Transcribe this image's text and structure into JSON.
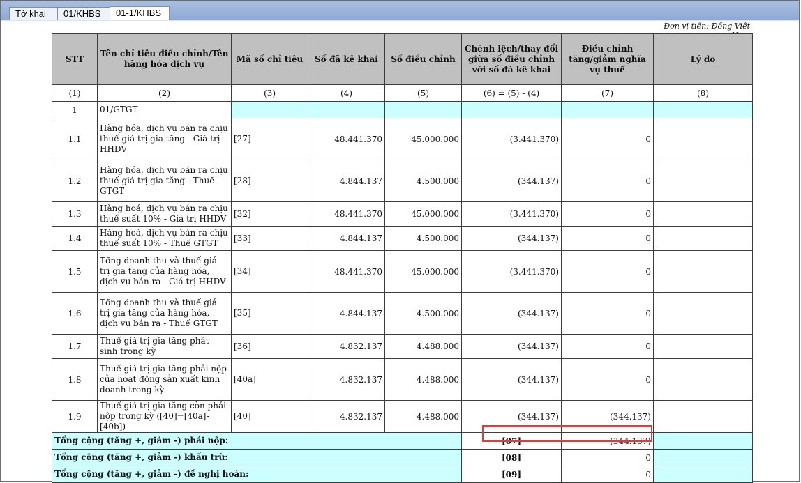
{
  "tabs": [
    {
      "label": "Tờ khai"
    },
    {
      "label": "01/KHBS"
    },
    {
      "label": "01-1/KHBS"
    }
  ],
  "unit_label": "Đơn vị tiền: Đồng Việt Nam",
  "headers": {
    "stt": "STT",
    "name": "Tên chỉ tiêu điều chỉnh/Tên hàng hóa dịch vụ",
    "code": "Mã số chỉ tiêu",
    "declared": "Số đã kê khai",
    "adjusted": "Số điều chỉnh",
    "diff": "Chênh lệch/thay đổi giữa số điều chỉnh với số đã kê khai",
    "tax_adj": "Điều chỉnh tăng/giảm nghĩa vụ thuế",
    "reason": "Lý do"
  },
  "column_numbers": [
    "(1)",
    "(2)",
    "(3)",
    "(4)",
    "(5)",
    "(6) = (5) - (4)",
    "(7)",
    "(8)"
  ],
  "section": {
    "stt": "1",
    "name": "01/GTGT"
  },
  "rows": [
    {
      "stt": "1.1",
      "name": "Hàng hóa, dịch vụ bán ra chịu thuế giá trị gia tăng - Giá trị HHDV",
      "code": "[27]",
      "declared": "48.441.370",
      "adjusted": "45.000.000",
      "diff": "(3.441.370)",
      "tax_adj": "0"
    },
    {
      "stt": "1.2",
      "name": "Hàng hóa, dịch vụ bán ra chịu thuế giá trị gia tăng - Thuế GTGT",
      "code": "[28]",
      "declared": "4.844.137",
      "adjusted": "4.500.000",
      "diff": "(344.137)",
      "tax_adj": "0"
    },
    {
      "stt": "1.3",
      "name": "Hàng hoá, dịch vụ bán ra chịu thuế suất 10% - Giá trị HHDV",
      "code": "[32]",
      "declared": "48.441.370",
      "adjusted": "45.000.000",
      "diff": "(3.441.370)",
      "tax_adj": "0"
    },
    {
      "stt": "1.4",
      "name": "Hàng hoá, dịch vụ bán ra chịu thuế suất 10% - Thuế GTGT",
      "code": "[33]",
      "declared": "4.844.137",
      "adjusted": "4.500.000",
      "diff": "(344.137)",
      "tax_adj": "0"
    },
    {
      "stt": "1.5",
      "name": "Tổng doanh thu và thuế giá trị gia tăng của hàng hóa, dịch vụ bán ra - Giá trị HHDV",
      "code": "[34]",
      "declared": "48.441.370",
      "adjusted": "45.000.000",
      "diff": "(3.441.370)",
      "tax_adj": "0"
    },
    {
      "stt": "1.6",
      "name": "Tổng doanh thu và thuế giá trị gia tăng của hàng hóa, dịch vụ bán ra - Thuế GTGT",
      "code": "[35]",
      "declared": "4.844.137",
      "adjusted": "4.500.000",
      "diff": "(344.137)",
      "tax_adj": "0"
    },
    {
      "stt": "1.7",
      "name": "Thuế giá trị gia tăng phát sinh trong kỳ",
      "code": "[36]",
      "declared": "4.832.137",
      "adjusted": "4.488.000",
      "diff": "(344.137)",
      "tax_adj": "0"
    },
    {
      "stt": "1.8",
      "name": "Thuế giá trị gia tăng phải nộp của hoạt động sản xuất kinh doanh trong kỳ",
      "code": "[40a]",
      "declared": "4.832.137",
      "adjusted": "4.488.000",
      "diff": "(344.137)",
      "tax_adj": "0"
    },
    {
      "stt": "1.9",
      "name": "Thuế giá trị gia tăng còn phải nộp trong kỳ ([40]=[40a]-[40b])",
      "code": "[40]",
      "declared": "4.832.137",
      "adjusted": "4.488.000",
      "diff": "(344.137)",
      "tax_adj": "(344.137)"
    }
  ],
  "totals": [
    {
      "label": "Tổng cộng (tăng +, giảm -) phải nộp:",
      "code": "[07]",
      "value": "(344.137)"
    },
    {
      "label": "Tổng cộng (tăng +, giảm -) khấu trừ:",
      "code": "[08]",
      "value": "0"
    },
    {
      "label": "Tổng cộng (tăng +, giảm -) đề nghị hoàn:",
      "code": "[09]",
      "value": "0"
    }
  ]
}
